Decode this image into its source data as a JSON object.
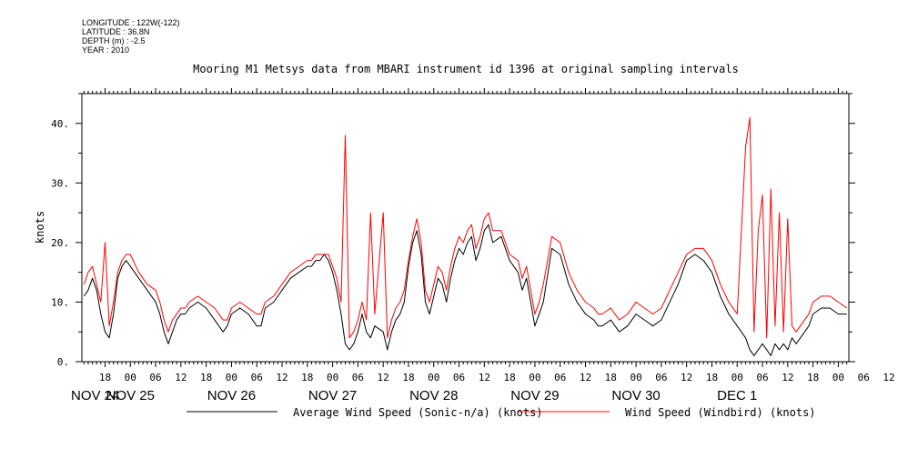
{
  "metadata": {
    "longitude": "LONGITUDE : 122W(-122)",
    "latitude": "LATITUDE : 36.8N",
    "depth": "DEPTH (m) : -2.5",
    "year": "YEAR : 2010"
  },
  "chart_data": {
    "type": "line",
    "title": "Mooring M1 Metsys data from MBARI instrument id 1396 at original sampling intervals",
    "xlabel": "",
    "ylabel": "knots",
    "ylim": [
      0,
      45
    ],
    "yticks": [
      0,
      10,
      20,
      30,
      40
    ],
    "ytick_labels": [
      "0.",
      "10.",
      "20.",
      "30.",
      "40."
    ],
    "xlim_hours": [
      12.5,
      194.5
    ],
    "hour_tick_labels": [
      "18",
      "00",
      "06",
      "12",
      "18",
      "00",
      "06",
      "12",
      "18",
      "00",
      "06",
      "12",
      "18",
      "00",
      "06",
      "12",
      "18",
      "00",
      "06",
      "12",
      "18",
      "00",
      "06",
      "12",
      "18",
      "00",
      "06",
      "12",
      "18",
      "00",
      "06",
      "12"
    ],
    "day_labels": [
      "NOV 24",
      "NOV 25",
      "NOV 26",
      "NOV 27",
      "NOV 28",
      "NOV 29",
      "NOV 30",
      "DEC  1"
    ],
    "legend": {
      "placement": "bottom",
      "entries": [
        {
          "label": "Average Wind Speed (Sonic-n/a) (knots)",
          "color": "#000000"
        },
        {
          "label": "Wind Speed (Windbird) (knots)",
          "color": "#ff0000"
        }
      ]
    },
    "x_units": "hours since 2010-11-24 00:00",
    "series": [
      {
        "name": "Average Wind Speed (Sonic-n/a) (knots)",
        "color": "#000000",
        "x": [
          13,
          14,
          15,
          16,
          17,
          18,
          19,
          20,
          21,
          22,
          23,
          24,
          26,
          28,
          30,
          31,
          32,
          33,
          34,
          35,
          36,
          37,
          38,
          40,
          42,
          44,
          46,
          47,
          48,
          50,
          52,
          54,
          55,
          56,
          58,
          60,
          62,
          64,
          66,
          67,
          68,
          69,
          70,
          71,
          72,
          73,
          74,
          75,
          76,
          77,
          78,
          79,
          80,
          81,
          82,
          84,
          85,
          86,
          87,
          88,
          89,
          90,
          91,
          92,
          93,
          94,
          95,
          96,
          97,
          98,
          99,
          100,
          101,
          102,
          103,
          104,
          105,
          106,
          107,
          108,
          109,
          110,
          112,
          114,
          116,
          117,
          118,
          119,
          120,
          121,
          122,
          124,
          126,
          128,
          130,
          132,
          134,
          135,
          136,
          138,
          140,
          142,
          144,
          146,
          148,
          150,
          152,
          154,
          156,
          158,
          160,
          162,
          163,
          164,
          166,
          168,
          170,
          171,
          172,
          173,
          174,
          175,
          176,
          177,
          178,
          179,
          180,
          181,
          182,
          183,
          184,
          185,
          186,
          188,
          190,
          192,
          194
        ],
        "y": [
          11,
          12,
          14,
          12,
          8,
          5,
          4,
          8,
          14,
          16,
          17,
          16,
          14,
          12,
          10,
          8,
          5,
          3,
          5,
          7,
          8,
          8,
          9,
          10,
          9,
          7,
          5,
          6,
          8,
          9,
          8,
          6,
          6,
          9,
          10,
          12,
          14,
          15,
          16,
          16,
          17,
          17,
          18,
          17,
          15,
          12,
          8,
          3,
          2,
          3,
          5,
          8,
          5,
          4,
          6,
          5,
          2,
          5,
          7,
          8,
          10,
          16,
          20,
          22,
          18,
          10,
          8,
          11,
          14,
          13,
          10,
          14,
          17,
          19,
          18,
          20,
          21,
          17,
          19,
          22,
          23,
          20,
          21,
          17,
          15,
          12,
          14,
          10,
          6,
          8,
          10,
          19,
          18,
          13,
          10,
          8,
          7,
          6,
          6,
          7,
          5,
          6,
          8,
          7,
          6,
          7,
          10,
          13,
          17,
          18,
          17,
          15,
          13,
          11,
          8,
          6,
          4,
          2,
          1,
          2,
          3,
          2,
          1,
          3,
          2,
          3,
          2,
          4,
          3,
          4,
          5,
          6,
          8,
          9,
          9,
          8,
          8
        ]
      },
      {
        "name": "Wind Speed (Windbird) (knots)",
        "color": "#ff0000",
        "x": [
          13,
          14,
          15,
          16,
          17,
          18,
          19,
          20,
          21,
          22,
          23,
          24,
          26,
          28,
          30,
          31,
          32,
          33,
          34,
          35,
          36,
          37,
          38,
          40,
          42,
          44,
          46,
          47,
          48,
          50,
          52,
          54,
          55,
          56,
          58,
          60,
          62,
          64,
          66,
          67,
          68,
          69,
          70,
          71,
          72,
          73,
          74,
          75,
          76,
          77,
          78,
          79,
          80,
          81,
          82,
          84,
          85,
          86,
          87,
          88,
          89,
          90,
          91,
          92,
          93,
          94,
          95,
          96,
          97,
          98,
          99,
          100,
          101,
          102,
          103,
          104,
          105,
          106,
          107,
          108,
          109,
          110,
          112,
          114,
          116,
          117,
          118,
          119,
          120,
          121,
          122,
          124,
          126,
          128,
          130,
          132,
          134,
          135,
          136,
          138,
          140,
          142,
          144,
          146,
          148,
          150,
          152,
          154,
          156,
          158,
          160,
          162,
          163,
          164,
          166,
          168,
          170,
          171,
          172,
          173,
          174,
          175,
          176,
          177,
          178,
          179,
          180,
          181,
          182,
          183,
          184,
          185,
          186,
          188,
          190,
          192,
          194
        ],
        "y": [
          13,
          15,
          16,
          13,
          10,
          20,
          6,
          10,
          15,
          17,
          18,
          18,
          15,
          13,
          12,
          10,
          7,
          5,
          7,
          8,
          9,
          9,
          10,
          11,
          10,
          9,
          7,
          7,
          9,
          10,
          9,
          8,
          8,
          10,
          11,
          13,
          15,
          16,
          17,
          17,
          18,
          18,
          18,
          18,
          16,
          14,
          10,
          38,
          4,
          5,
          7,
          10,
          7,
          25,
          8,
          25,
          4,
          7,
          9,
          10,
          12,
          17,
          21,
          24,
          20,
          12,
          10,
          13,
          16,
          15,
          12,
          16,
          19,
          21,
          20,
          22,
          23,
          19,
          21,
          24,
          25,
          22,
          22,
          18,
          17,
          14,
          16,
          12,
          8,
          10,
          13,
          21,
          20,
          15,
          12,
          10,
          9,
          8,
          8,
          9,
          7,
          8,
          10,
          9,
          8,
          9,
          12,
          15,
          18,
          19,
          19,
          17,
          15,
          13,
          10,
          8,
          36,
          41,
          5,
          22,
          28,
          4,
          29,
          6,
          25,
          5,
          24,
          6,
          5,
          6,
          7,
          8,
          10,
          11,
          11,
          10,
          9
        ]
      }
    ]
  }
}
